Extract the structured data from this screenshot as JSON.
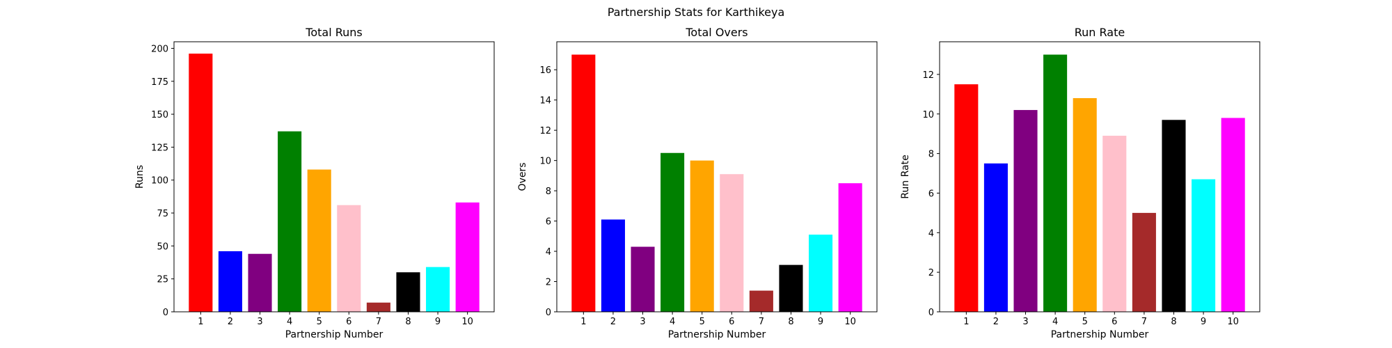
{
  "figure": {
    "suptitle": "Partnership Stats for Karthikeya"
  },
  "chart_data": [
    {
      "type": "bar",
      "title": "Total Runs",
      "xlabel": "Partnership Number",
      "ylabel": "Runs",
      "categories": [
        "1",
        "2",
        "3",
        "4",
        "5",
        "6",
        "7",
        "8",
        "9",
        "10"
      ],
      "values": [
        196,
        46,
        44,
        137,
        108,
        81,
        7,
        30,
        34,
        83
      ],
      "colors": [
        "#ff0000",
        "#0000ff",
        "#800080",
        "#008000",
        "#ffa500",
        "#ffc0cb",
        "#a52a2a",
        "#000000",
        "#00ffff",
        "#ff00ff"
      ],
      "ylim": [
        0,
        205
      ],
      "yticks": [
        0,
        25,
        50,
        75,
        100,
        125,
        150,
        175,
        200
      ],
      "grid": false,
      "legend": "none"
    },
    {
      "type": "bar",
      "title": "Total Overs",
      "xlabel": "Partnership Number",
      "ylabel": "Overs",
      "categories": [
        "1",
        "2",
        "3",
        "4",
        "5",
        "6",
        "7",
        "8",
        "9",
        "10"
      ],
      "values": [
        17.0,
        6.1,
        4.3,
        10.5,
        10.0,
        9.1,
        1.4,
        3.1,
        5.1,
        8.5
      ],
      "colors": [
        "#ff0000",
        "#0000ff",
        "#800080",
        "#008000",
        "#ffa500",
        "#ffc0cb",
        "#a52a2a",
        "#000000",
        "#00ffff",
        "#ff00ff"
      ],
      "ylim": [
        0,
        17.85
      ],
      "yticks": [
        0,
        2,
        4,
        6,
        8,
        10,
        12,
        14,
        16
      ],
      "grid": false,
      "legend": "none"
    },
    {
      "type": "bar",
      "title": "Run Rate",
      "xlabel": "Partnership Number",
      "ylabel": "Run Rate",
      "categories": [
        "1",
        "2",
        "3",
        "4",
        "5",
        "6",
        "7",
        "8",
        "9",
        "10"
      ],
      "values": [
        11.5,
        7.5,
        10.2,
        13.0,
        10.8,
        8.9,
        5.0,
        9.7,
        6.7,
        9.8
      ],
      "colors": [
        "#ff0000",
        "#0000ff",
        "#800080",
        "#008000",
        "#ffa500",
        "#ffc0cb",
        "#a52a2a",
        "#000000",
        "#00ffff",
        "#ff00ff"
      ],
      "ylim": [
        0,
        13.65
      ],
      "yticks": [
        0,
        2,
        4,
        6,
        8,
        10,
        12
      ],
      "grid": false,
      "legend": "none"
    }
  ]
}
